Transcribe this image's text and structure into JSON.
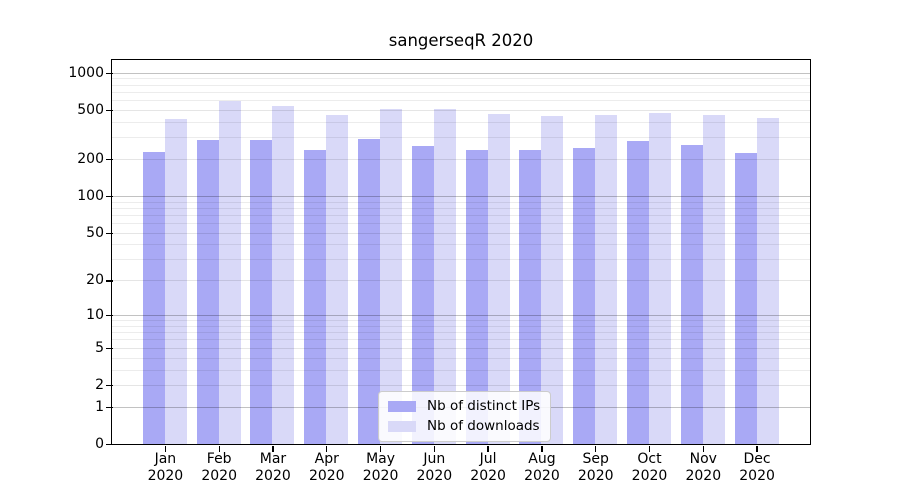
{
  "chart_data": {
    "type": "bar",
    "title": "sangerseqR 2020",
    "x": {
      "months": [
        "Jan",
        "Feb",
        "Mar",
        "Apr",
        "May",
        "Jun",
        "Jul",
        "Aug",
        "Sep",
        "Oct",
        "Nov",
        "Dec"
      ],
      "year": "2020"
    },
    "series": [
      {
        "name": "Nb of distinct IPs",
        "color": "#a9a9f5",
        "values": [
          230,
          284,
          283,
          238,
          291,
          254,
          236,
          235,
          245,
          279,
          258,
          224
        ]
      },
      {
        "name": "Nb of downloads",
        "color": "#d9d9f8",
        "values": [
          422,
          590,
          534,
          452,
          512,
          512,
          464,
          444,
          453,
          475,
          458,
          430
        ]
      }
    ],
    "y_axis": {
      "scale": "log1p",
      "ticks": [
        0,
        1,
        2,
        5,
        10,
        20,
        50,
        100,
        200,
        500,
        1000
      ],
      "decade_ticks": [
        1,
        10,
        100,
        1000
      ],
      "minor_gridlines": [
        3,
        4,
        6,
        7,
        8,
        9,
        30,
        40,
        60,
        70,
        80,
        90,
        300,
        400,
        600,
        700,
        800,
        900
      ],
      "ylim": [
        0,
        1280
      ]
    },
    "grid": true,
    "legend_position": "inside-bottom-center"
  },
  "colors": {
    "spine": "#000000",
    "background": "#ffffff",
    "legend_border": "#cccccc"
  }
}
